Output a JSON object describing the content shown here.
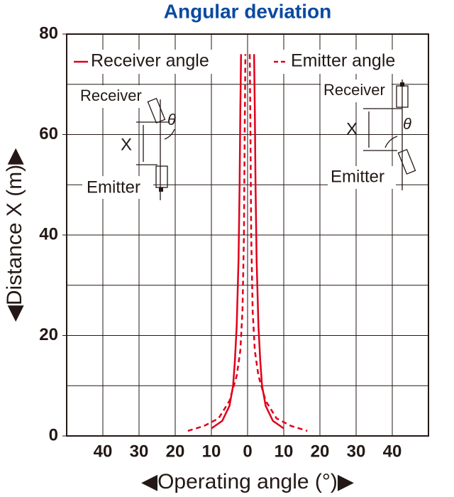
{
  "chart_data": {
    "type": "line",
    "title": "Angular deviation",
    "x_label": "◀Operating angle (°)▶",
    "y_label": "◀Distance X (m)▶",
    "xlim": [
      -50,
      50
    ],
    "ylim": [
      0,
      80
    ],
    "xticks": [
      {
        "value": -40,
        "label": "40"
      },
      {
        "value": -30,
        "label": "30"
      },
      {
        "value": -20,
        "label": "20"
      },
      {
        "value": -10,
        "label": "10"
      },
      0,
      10,
      20,
      30,
      40
    ],
    "yticks": [
      0,
      20,
      40,
      60,
      80
    ],
    "ygrid": [
      10,
      20,
      30,
      40,
      50,
      60,
      70
    ],
    "grid": true,
    "legend": "top",
    "series": [
      {
        "name": "Receiver angle",
        "color": "#e0001b",
        "dash": false,
        "x": [
          -10,
          -7,
          -5,
          -4,
          -3.5,
          -3,
          -2.5,
          -2.2,
          -2,
          -1.8,
          null,
          1.8,
          2,
          2.2,
          2.5,
          3,
          3.5,
          4,
          5,
          7,
          10
        ],
        "y": [
          1.5,
          3,
          6,
          10,
          15,
          22,
          35,
          50,
          65,
          76,
          null,
          76,
          65,
          50,
          35,
          22,
          15,
          10,
          6,
          3,
          1.5
        ]
      },
      {
        "name": "Emitter angle",
        "color": "#e0001b",
        "dash": true,
        "x": [
          -16.5,
          -12,
          -8,
          -5,
          -3,
          -2,
          -1.4,
          -1,
          -0.8,
          -0.6,
          null,
          0.6,
          0.8,
          1,
          1.4,
          2,
          3,
          5,
          8,
          12,
          16.5
        ],
        "y": [
          1,
          2,
          3.5,
          7,
          12,
          17,
          25,
          40,
          60,
          76,
          null,
          76,
          60,
          40,
          25,
          17,
          12,
          7,
          3.5,
          2,
          1
        ]
      }
    ],
    "annotations": [
      "Receiver",
      "θ",
      "X",
      "Emitter",
      "Receiver",
      "θ",
      "X",
      "Emitter"
    ]
  }
}
